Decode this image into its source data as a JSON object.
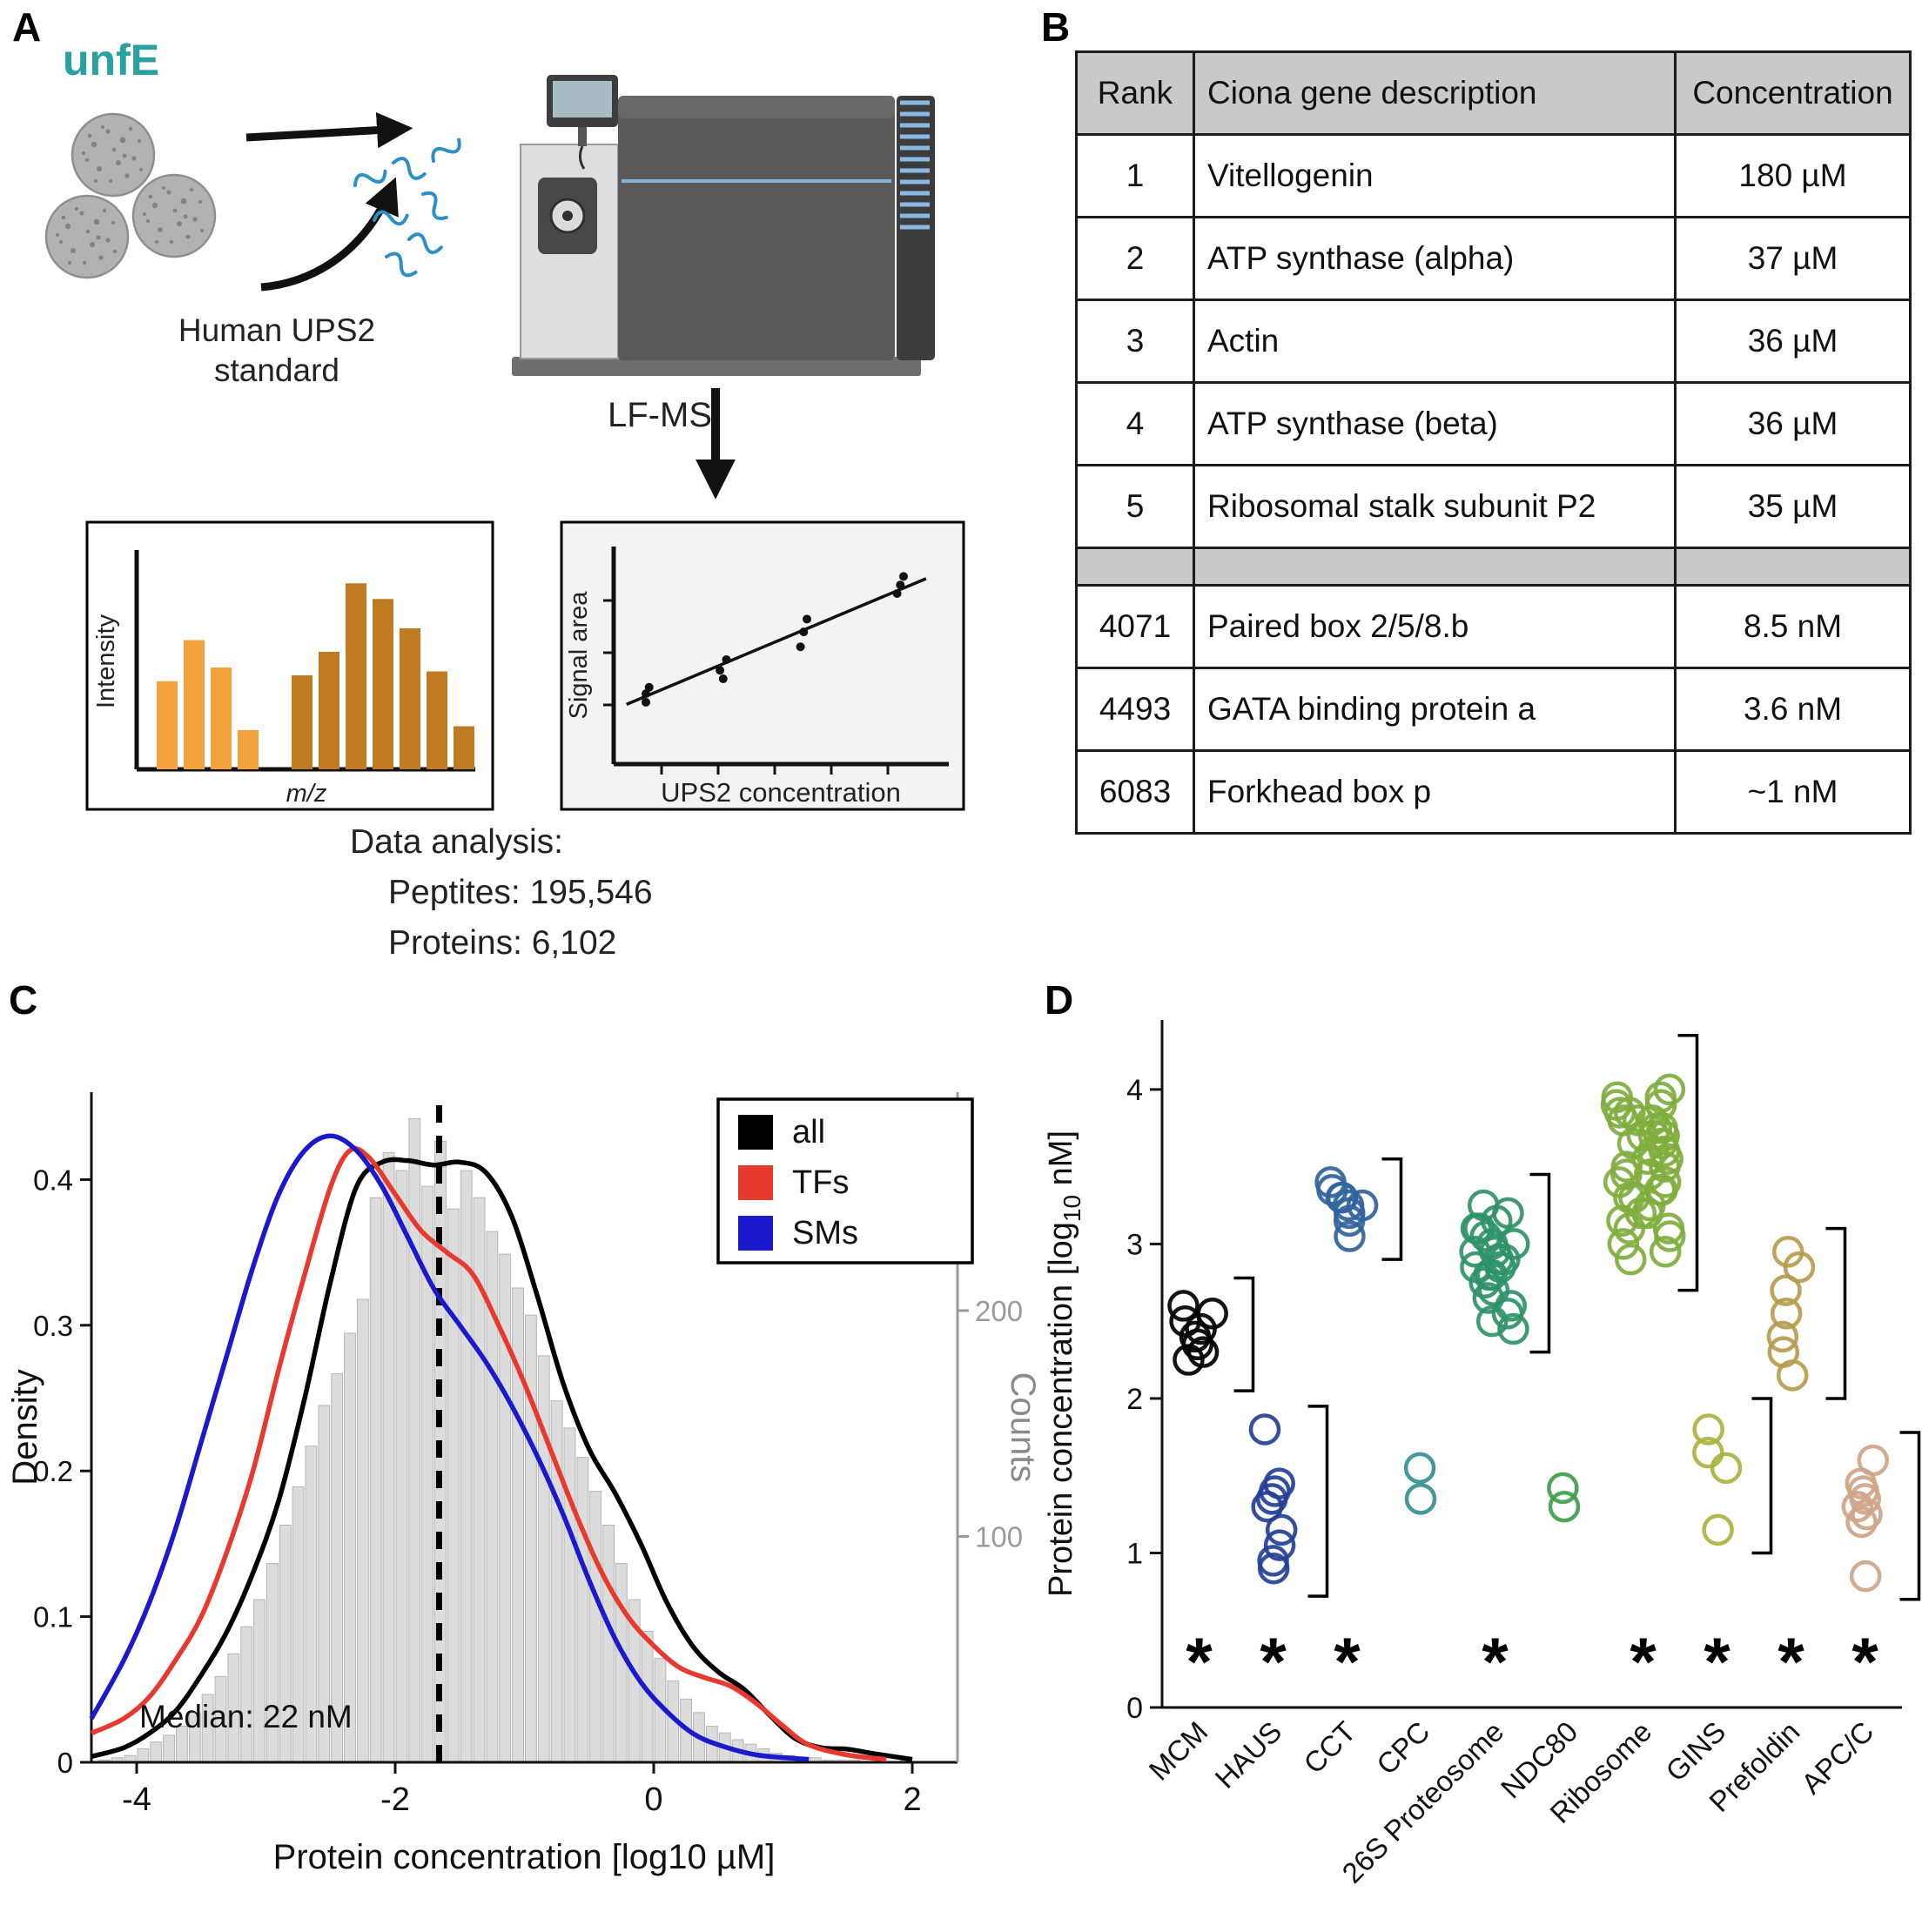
{
  "panel_a": {
    "label": "A",
    "sample_name": "unfE",
    "sample_color": "#2aa0a0",
    "standard_label_line1": "Human UPS2",
    "standard_label_line2": "standard",
    "ms_method": "LF-MS",
    "spectrum_plot": {
      "ylabel": "Intensity",
      "xlabel": "m/z",
      "group1_color": "#f2a33c",
      "group2_color": "#c17b22",
      "group1_heights": [
        0.45,
        0.66,
        0.52,
        0.2
      ],
      "group2_heights": [
        0.48,
        0.6,
        0.95,
        0.87,
        0.72,
        0.5,
        0.22
      ]
    },
    "calibration_plot": {
      "ylabel": "Signal area",
      "xlabel": "UPS2 concentration",
      "points": [
        [
          0.1,
          0.29
        ],
        [
          0.1,
          0.33
        ],
        [
          0.11,
          0.36
        ],
        [
          0.33,
          0.44
        ],
        [
          0.34,
          0.4
        ],
        [
          0.35,
          0.49
        ],
        [
          0.58,
          0.55
        ],
        [
          0.59,
          0.62
        ],
        [
          0.6,
          0.68
        ],
        [
          0.88,
          0.8
        ],
        [
          0.89,
          0.84
        ],
        [
          0.9,
          0.88
        ]
      ],
      "fit_line": [
        [
          0.04,
          0.28
        ],
        [
          0.97,
          0.87
        ]
      ]
    },
    "analysis_title": "Data analysis:",
    "analysis_lines": [
      "Peptites: 195,546",
      "Proteins: 6,102"
    ]
  },
  "panel_b": {
    "label": "B",
    "headers": [
      "Rank",
      "Ciona gene description",
      "Concentration"
    ],
    "rows_top": [
      [
        "1",
        "Vitellogenin",
        "180 µM"
      ],
      [
        "2",
        "ATP synthase (alpha)",
        "37 µM"
      ],
      [
        "3",
        "Actin",
        "36 µM"
      ],
      [
        "4",
        "ATP synthase (beta)",
        "36 µM"
      ],
      [
        "5",
        "Ribosomal stalk subunit P2",
        "35 µM"
      ]
    ],
    "rows_bottom": [
      [
        "4071",
        "Paired box 2/5/8.b",
        "8.5 nM"
      ],
      [
        "4493",
        "GATA binding protein a",
        "3.6 nM"
      ],
      [
        "6083",
        "Forkhead box p",
        "~1 nM"
      ]
    ]
  },
  "panel_c": {
    "label": "C"
  },
  "panel_d": {
    "label": "D"
  },
  "chart_data": [
    {
      "id": "panel_c",
      "type": "area",
      "subtype": "histogram-with-density-curves",
      "xlabel": "Protein concentration [log10 µM]",
      "ylabel_left": "Density",
      "ylabel_right": "Counts",
      "xlim": [
        -4.35,
        2.35
      ],
      "ylim_density": [
        0,
        0.46
      ],
      "x_ticks": [
        -4,
        -2,
        0,
        2
      ],
      "y_ticks_density": [
        0,
        0.1,
        0.2,
        0.3,
        0.4
      ],
      "y_ticks_counts": [
        100,
        200
      ],
      "counts_per_density_unit": 645,
      "grid": false,
      "legend_position": "top-right",
      "legend": [
        {
          "label": "all",
          "color": "#000000"
        },
        {
          "label": "TFs",
          "color": "#e8392f"
        },
        {
          "label": "SMs",
          "color": "#1a1acc"
        }
      ],
      "median_line": {
        "x": -1.66,
        "label": "Median: 22 nM"
      },
      "histogram": {
        "bin_start": -4.3,
        "bin_width": 0.1,
        "color": "#dcdcdc",
        "counts": [
          1,
          2,
          3,
          6,
          9,
          12,
          16,
          22,
          30,
          38,
          48,
          60,
          72,
          88,
          105,
          122,
          140,
          158,
          172,
          190,
          205,
          250,
          270,
          262,
          285,
          255,
          275,
          245,
          262,
          250,
          235,
          225,
          210,
          198,
          180,
          160,
          148,
          135,
          120,
          105,
          88,
          72,
          58,
          46,
          36,
          28,
          22,
          16,
          13,
          10,
          8,
          6,
          4,
          3,
          2,
          2,
          1,
          1,
          1,
          0,
          0,
          0,
          1
        ]
      },
      "series": [
        {
          "name": "all",
          "color": "#000000",
          "points": [
            [
              -4.35,
              0.004
            ],
            [
              -4.1,
              0.01
            ],
            [
              -3.9,
              0.02
            ],
            [
              -3.7,
              0.035
            ],
            [
              -3.5,
              0.06
            ],
            [
              -3.3,
              0.09
            ],
            [
              -3.1,
              0.13
            ],
            [
              -2.9,
              0.18
            ],
            [
              -2.7,
              0.25
            ],
            [
              -2.5,
              0.33
            ],
            [
              -2.3,
              0.395
            ],
            [
              -2.1,
              0.412
            ],
            [
              -1.9,
              0.413
            ],
            [
              -1.7,
              0.41
            ],
            [
              -1.5,
              0.412
            ],
            [
              -1.3,
              0.405
            ],
            [
              -1.1,
              0.375
            ],
            [
              -0.9,
              0.32
            ],
            [
              -0.7,
              0.26
            ],
            [
              -0.5,
              0.215
            ],
            [
              -0.3,
              0.185
            ],
            [
              -0.1,
              0.15
            ],
            [
              0.1,
              0.11
            ],
            [
              0.3,
              0.08
            ],
            [
              0.5,
              0.062
            ],
            [
              0.7,
              0.05
            ],
            [
              0.9,
              0.032
            ],
            [
              1.1,
              0.016
            ],
            [
              1.3,
              0.01
            ],
            [
              1.5,
              0.009
            ],
            [
              1.7,
              0.006
            ],
            [
              2.0,
              0.002
            ]
          ]
        },
        {
          "name": "TFs",
          "color": "#e8392f",
          "points": [
            [
              -4.35,
              0.02
            ],
            [
              -4.1,
              0.03
            ],
            [
              -3.9,
              0.045
            ],
            [
              -3.7,
              0.07
            ],
            [
              -3.5,
              0.1
            ],
            [
              -3.3,
              0.145
            ],
            [
              -3.1,
              0.2
            ],
            [
              -2.9,
              0.27
            ],
            [
              -2.7,
              0.335
            ],
            [
              -2.5,
              0.395
            ],
            [
              -2.35,
              0.42
            ],
            [
              -2.2,
              0.415
            ],
            [
              -2.0,
              0.39
            ],
            [
              -1.8,
              0.365
            ],
            [
              -1.6,
              0.35
            ],
            [
              -1.4,
              0.335
            ],
            [
              -1.2,
              0.3
            ],
            [
              -1.0,
              0.26
            ],
            [
              -0.8,
              0.215
            ],
            [
              -0.6,
              0.17
            ],
            [
              -0.4,
              0.13
            ],
            [
              -0.2,
              0.1
            ],
            [
              0.0,
              0.08
            ],
            [
              0.2,
              0.065
            ],
            [
              0.4,
              0.058
            ],
            [
              0.6,
              0.052
            ],
            [
              0.8,
              0.04
            ],
            [
              1.0,
              0.025
            ],
            [
              1.2,
              0.012
            ],
            [
              1.5,
              0.005
            ],
            [
              1.8,
              0.002
            ]
          ]
        },
        {
          "name": "SMs",
          "color": "#1a1acc",
          "points": [
            [
              -4.35,
              0.03
            ],
            [
              -4.1,
              0.07
            ],
            [
              -3.9,
              0.11
            ],
            [
              -3.7,
              0.16
            ],
            [
              -3.5,
              0.22
            ],
            [
              -3.3,
              0.28
            ],
            [
              -3.1,
              0.34
            ],
            [
              -2.9,
              0.39
            ],
            [
              -2.7,
              0.42
            ],
            [
              -2.5,
              0.43
            ],
            [
              -2.3,
              0.42
            ],
            [
              -2.1,
              0.395
            ],
            [
              -1.9,
              0.36
            ],
            [
              -1.7,
              0.325
            ],
            [
              -1.5,
              0.3
            ],
            [
              -1.3,
              0.275
            ],
            [
              -1.1,
              0.245
            ],
            [
              -0.9,
              0.21
            ],
            [
              -0.7,
              0.17
            ],
            [
              -0.5,
              0.125
            ],
            [
              -0.3,
              0.085
            ],
            [
              -0.1,
              0.055
            ],
            [
              0.1,
              0.035
            ],
            [
              0.3,
              0.02
            ],
            [
              0.5,
              0.012
            ],
            [
              0.8,
              0.005
            ],
            [
              1.2,
              0.002
            ]
          ]
        }
      ]
    },
    {
      "id": "panel_d",
      "type": "scatter",
      "subtype": "strip-plot",
      "ylabel": "Protein concentration [log10 nM]",
      "ylabel_parts": {
        "prefix": "Protein concentration [log",
        "sub": "10",
        "suffix": " nM]"
      },
      "ylim": [
        0,
        4.45
      ],
      "y_ticks": [
        0,
        1,
        2,
        3,
        4
      ],
      "asterisk_marker": "*",
      "groups": [
        {
          "name": "MCM",
          "color": "#000000",
          "spread": 36,
          "asterisk": true,
          "bracket": [
            2.05,
            2.78
          ],
          "values": [
            2.6,
            2.55,
            2.5,
            2.45,
            2.4,
            2.35,
            2.3,
            2.25
          ]
        },
        {
          "name": "HAUS",
          "color": "#243f96",
          "spread": 30,
          "asterisk": true,
          "bracket": [
            0.72,
            1.95
          ],
          "values": [
            1.8,
            1.45,
            1.4,
            1.35,
            1.3,
            1.15,
            1.05,
            0.95,
            0.9
          ]
        },
        {
          "name": "CCT",
          "color": "#31639c",
          "spread": 40,
          "asterisk": true,
          "bracket": [
            2.9,
            3.55
          ],
          "values": [
            3.4,
            3.35,
            3.3,
            3.3,
            3.25,
            3.25,
            3.2,
            3.15,
            3.05
          ]
        },
        {
          "name": "CPC",
          "color": "#35918f",
          "spread": 6,
          "asterisk": false,
          "bracket": null,
          "values": [
            1.55,
            1.35
          ]
        },
        {
          "name": "26S Proteosome",
          "color": "#2f9268",
          "spread": 46,
          "asterisk": true,
          "bracket": [
            2.3,
            3.45
          ],
          "values": [
            3.25,
            3.2,
            3.15,
            3.1,
            3.1,
            3.05,
            3.0,
            3.0,
            2.95,
            2.95,
            2.9,
            2.9,
            2.85,
            2.85,
            2.8,
            2.8,
            2.75,
            2.7,
            2.65,
            2.6,
            2.55,
            2.5,
            2.45
          ]
        },
        {
          "name": "NDC80",
          "color": "#3f9e4d",
          "spread": 16,
          "asterisk": false,
          "bracket": null,
          "values": [
            1.42,
            1.3
          ]
        },
        {
          "name": "Ribosome",
          "color": "#7fae3e",
          "spread": 64,
          "asterisk": true,
          "bracket": [
            2.7,
            4.35
          ],
          "values": [
            4.0,
            3.95,
            3.95,
            3.9,
            3.9,
            3.85,
            3.85,
            3.8,
            3.8,
            3.8,
            3.75,
            3.75,
            3.7,
            3.7,
            3.7,
            3.65,
            3.65,
            3.6,
            3.6,
            3.55,
            3.55,
            3.5,
            3.5,
            3.45,
            3.45,
            3.4,
            3.4,
            3.35,
            3.35,
            3.3,
            3.3,
            3.25,
            3.2,
            3.2,
            3.15,
            3.1,
            3.1,
            3.05,
            3.0,
            2.95,
            2.9
          ]
        },
        {
          "name": "GINS",
          "color": "#aab23f",
          "spread": 26,
          "asterisk": true,
          "bracket": [
            1.0,
            2.0
          ],
          "values": [
            1.8,
            1.65,
            1.55,
            1.15
          ]
        },
        {
          "name": "Prefoldin",
          "color": "#b79b4d",
          "spread": 20,
          "asterisk": true,
          "bracket": [
            2.0,
            3.1
          ],
          "values": [
            2.95,
            2.85,
            2.7,
            2.55,
            2.4,
            2.3,
            2.15
          ]
        },
        {
          "name": "APC/C",
          "color": "#cfa489",
          "spread": 22,
          "asterisk": true,
          "bracket": [
            0.7,
            1.78
          ],
          "values": [
            1.6,
            1.45,
            1.4,
            1.35,
            1.3,
            1.25,
            1.2,
            0.85
          ]
        }
      ]
    }
  ]
}
